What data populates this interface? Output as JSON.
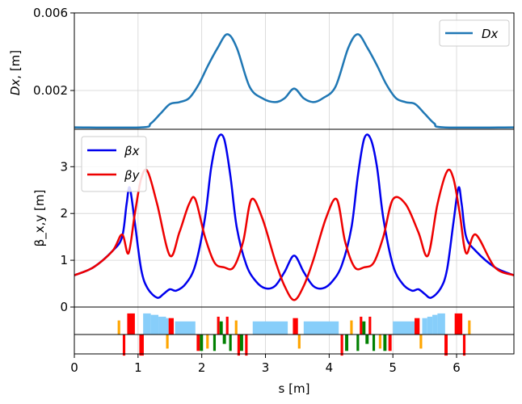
{
  "colors": {
    "dx": "#1f77b4",
    "beta_x": "#0000ee",
    "beta_y": "#ee0000",
    "grid": "#d3d3d3",
    "dipole": "#ff0000",
    "quad": "#008000",
    "sext": "#ffa500",
    "drift_block": "#87cefa"
  },
  "chart_data": [
    {
      "type": "line",
      "panel": "dispersion",
      "ylabel_main": "Dx",
      "ylabel_unit": ", [m]",
      "xlim": [
        0,
        6.9
      ],
      "ylim": [
        0,
        0.006
      ],
      "yticks": [
        0.002,
        0.006
      ],
      "ytick_labels": [
        "0.002",
        "0.006"
      ],
      "grid": true,
      "legend_position": "top-right",
      "series": [
        {
          "name": "Dx",
          "color": "#1f77b4",
          "x": [
            0,
            1.05,
            1.2,
            1.35,
            1.5,
            1.65,
            1.8,
            1.95,
            2.1,
            2.25,
            2.4,
            2.55,
            2.75,
            2.95,
            3.15,
            3.3,
            3.45,
            3.6,
            3.75,
            3.9,
            4.1,
            4.3,
            4.45,
            4.6,
            4.75,
            4.9,
            5.05,
            5.2,
            5.35,
            5.5,
            5.65,
            5.8,
            6.9
          ],
          "y": [
            0.0001,
            0.0001,
            0.0003,
            0.0008,
            0.0013,
            0.0014,
            0.0016,
            0.0023,
            0.0033,
            0.0042,
            0.0049,
            0.0042,
            0.0022,
            0.0016,
            0.0014,
            0.0016,
            0.0021,
            0.0016,
            0.0014,
            0.0016,
            0.0022,
            0.0042,
            0.0049,
            0.0042,
            0.0033,
            0.0023,
            0.0016,
            0.0014,
            0.0013,
            0.0008,
            0.0003,
            0.0001,
            0.0001
          ]
        }
      ]
    },
    {
      "type": "line",
      "panel": "beta",
      "ylabel": "β_x,y [m]",
      "xlim": [
        0,
        6.9
      ],
      "ylim": [
        0,
        3.8
      ],
      "yticks": [
        0,
        1,
        2,
        3
      ],
      "ytick_labels": [
        "0",
        "1",
        "2",
        "3"
      ],
      "grid": true,
      "legend_position": "top-left",
      "series": [
        {
          "name": "βx",
          "color": "#0000ee",
          "x": [
            0,
            0.3,
            0.6,
            0.75,
            0.82,
            0.87,
            0.95,
            1.05,
            1.15,
            1.3,
            1.4,
            1.5,
            1.6,
            1.75,
            1.9,
            2.05,
            2.15,
            2.25,
            2.35,
            2.45,
            2.55,
            2.7,
            2.85,
            3.0,
            3.15,
            3.3,
            3.45,
            3.6,
            3.75,
            3.9,
            4.05,
            4.2,
            4.35,
            4.45,
            4.55,
            4.65,
            4.75,
            4.85,
            5.0,
            5.15,
            5.3,
            5.4,
            5.5,
            5.6,
            5.75,
            5.85,
            5.95,
            6.03,
            6.08,
            6.15,
            6.3,
            6.6,
            6.9
          ],
          "y": [
            0.68,
            0.85,
            1.2,
            1.5,
            2.2,
            2.55,
            1.8,
            0.8,
            0.4,
            0.2,
            0.28,
            0.38,
            0.35,
            0.5,
            0.9,
            1.9,
            3.0,
            3.6,
            3.6,
            2.8,
            1.7,
            0.9,
            0.55,
            0.4,
            0.45,
            0.75,
            1.1,
            0.75,
            0.45,
            0.4,
            0.55,
            0.9,
            1.7,
            2.8,
            3.6,
            3.6,
            3.0,
            1.9,
            0.9,
            0.5,
            0.35,
            0.38,
            0.28,
            0.2,
            0.4,
            0.8,
            1.8,
            2.55,
            2.2,
            1.5,
            1.2,
            0.85,
            0.68
          ]
        },
        {
          "name": "βy",
          "color": "#ee0000",
          "x": [
            0,
            0.3,
            0.6,
            0.75,
            0.85,
            0.95,
            1.05,
            1.15,
            1.3,
            1.5,
            1.65,
            1.8,
            1.9,
            2.05,
            2.2,
            2.35,
            2.5,
            2.65,
            2.78,
            2.95,
            3.15,
            3.3,
            3.45,
            3.6,
            3.75,
            3.95,
            4.12,
            4.25,
            4.4,
            4.55,
            4.7,
            4.85,
            5.0,
            5.2,
            5.4,
            5.55,
            5.7,
            5.85,
            5.95,
            6.05,
            6.15,
            6.3,
            6.6,
            6.9
          ],
          "y": [
            0.68,
            0.85,
            1.2,
            1.55,
            1.15,
            2.0,
            2.75,
            2.9,
            2.2,
            1.1,
            1.6,
            2.2,
            2.3,
            1.5,
            0.95,
            0.85,
            0.85,
            1.4,
            2.3,
            1.9,
            1.0,
            0.45,
            0.15,
            0.45,
            1.0,
            1.9,
            2.3,
            1.4,
            0.85,
            0.85,
            0.95,
            1.5,
            2.3,
            2.2,
            1.6,
            1.1,
            2.2,
            2.9,
            2.75,
            2.0,
            1.15,
            1.55,
            0.85,
            0.68
          ]
        }
      ]
    }
  ],
  "lattice": {
    "xlabel": "s [m]",
    "xticks": [
      0,
      1,
      2,
      3,
      4,
      5,
      6
    ],
    "xtick_labels": [
      "0",
      "1",
      "2",
      "3",
      "4",
      "5",
      "6"
    ],
    "elements": [
      {
        "s": 0.68,
        "len": 0.04,
        "h": 0.3,
        "type": "sext"
      },
      {
        "s": 0.76,
        "len": 0.04,
        "h": -0.45,
        "type": "dipole"
      },
      {
        "s": 0.83,
        "len": 0.12,
        "h": 0.45,
        "type": "dipole"
      },
      {
        "s": 1.02,
        "len": 0.07,
        "h": -0.45,
        "type": "dipole"
      },
      {
        "s": 1.08,
        "len": 0.12,
        "h": 0.45,
        "type": "drift"
      },
      {
        "s": 1.2,
        "len": 0.12,
        "h": 0.42,
        "type": "drift"
      },
      {
        "s": 1.32,
        "len": 0.12,
        "h": 0.38,
        "type": "drift"
      },
      {
        "s": 1.44,
        "len": 0.04,
        "h": 0.35,
        "type": "drift"
      },
      {
        "s": 1.44,
        "len": 0.04,
        "h": -0.3,
        "type": "sext"
      },
      {
        "s": 1.48,
        "len": 0.08,
        "h": 0.35,
        "type": "dipole"
      },
      {
        "s": 1.58,
        "len": 0.32,
        "h": 0.28,
        "type": "drift"
      },
      {
        "s": 1.92,
        "len": 0.05,
        "h": -0.35,
        "type": "dipole"
      },
      {
        "s": 1.97,
        "len": 0.05,
        "h": -0.35,
        "type": "quad"
      },
      {
        "s": 2.07,
        "len": 0.04,
        "h": -0.3,
        "type": "sext"
      },
      {
        "s": 2.18,
        "len": 0.04,
        "h": -0.35,
        "type": "quad"
      },
      {
        "s": 2.24,
        "len": 0.04,
        "h": 0.38,
        "type": "dipole"
      },
      {
        "s": 2.28,
        "len": 0.05,
        "h": 0.28,
        "type": "quad"
      },
      {
        "s": 2.33,
        "len": 0.05,
        "h": -0.2,
        "type": "quad"
      },
      {
        "s": 2.38,
        "len": 0.04,
        "h": 0.38,
        "type": "dipole"
      },
      {
        "s": 2.43,
        "len": 0.04,
        "h": -0.35,
        "type": "quad"
      },
      {
        "s": 2.52,
        "len": 0.04,
        "h": 0.3,
        "type": "sext"
      },
      {
        "s": 2.56,
        "len": 0.04,
        "h": -0.45,
        "type": "dipole"
      },
      {
        "s": 2.6,
        "len": 0.05,
        "h": -0.35,
        "type": "quad"
      },
      {
        "s": 2.68,
        "len": 0.04,
        "h": -0.45,
        "type": "dipole"
      },
      {
        "s": 2.8,
        "len": 0.55,
        "h": 0.28,
        "type": "drift"
      },
      {
        "s": 3.43,
        "len": 0.08,
        "h": 0.35,
        "type": "dipole"
      },
      {
        "s": 3.51,
        "len": 0.04,
        "h": -0.3,
        "type": "sext"
      },
      {
        "s": 3.6,
        "len": 0.55,
        "h": 0.28,
        "type": "drift"
      },
      {
        "s": 4.18,
        "len": 0.04,
        "h": -0.45,
        "type": "dipole"
      },
      {
        "s": 4.25,
        "len": 0.05,
        "h": -0.35,
        "type": "quad"
      },
      {
        "s": 4.33,
        "len": 0.04,
        "h": 0.3,
        "type": "sext"
      },
      {
        "s": 4.43,
        "len": 0.04,
        "h": -0.35,
        "type": "quad"
      },
      {
        "s": 4.48,
        "len": 0.04,
        "h": 0.38,
        "type": "dipole"
      },
      {
        "s": 4.52,
        "len": 0.05,
        "h": 0.28,
        "type": "quad"
      },
      {
        "s": 4.57,
        "len": 0.05,
        "h": -0.2,
        "type": "quad"
      },
      {
        "s": 4.62,
        "len": 0.04,
        "h": 0.38,
        "type": "dipole"
      },
      {
        "s": 4.68,
        "len": 0.04,
        "h": -0.35,
        "type": "quad"
      },
      {
        "s": 4.78,
        "len": 0.04,
        "h": -0.3,
        "type": "sext"
      },
      {
        "s": 4.85,
        "len": 0.05,
        "h": -0.35,
        "type": "quad"
      },
      {
        "s": 4.93,
        "len": 0.05,
        "h": -0.35,
        "type": "dipole"
      },
      {
        "s": 5.0,
        "len": 0.34,
        "h": 0.28,
        "type": "drift"
      },
      {
        "s": 5.34,
        "len": 0.08,
        "h": 0.35,
        "type": "dipole"
      },
      {
        "s": 5.42,
        "len": 0.04,
        "h": -0.3,
        "type": "sext"
      },
      {
        "s": 5.46,
        "len": 0.08,
        "h": 0.35,
        "type": "drift"
      },
      {
        "s": 5.54,
        "len": 0.08,
        "h": 0.38,
        "type": "drift"
      },
      {
        "s": 5.62,
        "len": 0.08,
        "h": 0.42,
        "type": "drift"
      },
      {
        "s": 5.7,
        "len": 0.12,
        "h": 0.45,
        "type": "drift"
      },
      {
        "s": 5.81,
        "len": 0.05,
        "h": -0.45,
        "type": "dipole"
      },
      {
        "s": 5.97,
        "len": 0.12,
        "h": 0.45,
        "type": "dipole"
      },
      {
        "s": 6.1,
        "len": 0.04,
        "h": -0.45,
        "type": "dipole"
      },
      {
        "s": 6.18,
        "len": 0.04,
        "h": 0.3,
        "type": "sext"
      }
    ]
  }
}
